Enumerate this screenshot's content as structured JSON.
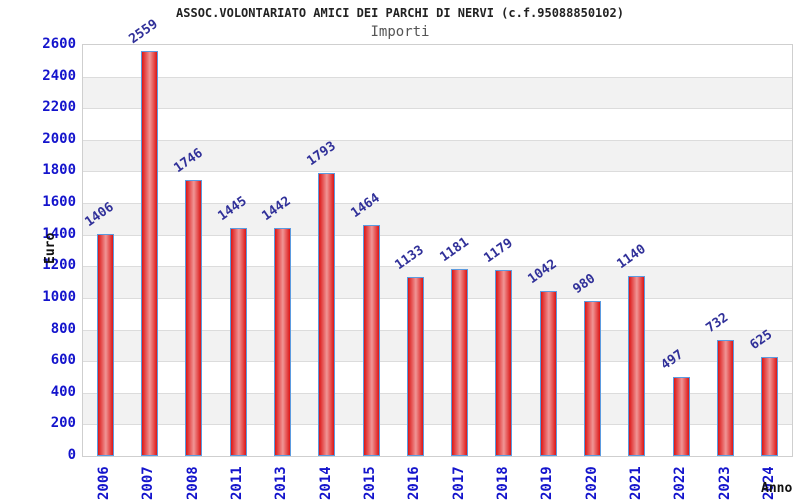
{
  "chart": {
    "title": "ASSOC.VOLONTARIATO AMICI DEI PARCHI DI NERVI (c.f.95088850102)",
    "subtitle": "Importi",
    "y_axis_title": "Euro",
    "x_axis_title": "Anno"
  },
  "chart_data": {
    "type": "bar",
    "title": "ASSOC.VOLONTARIATO AMICI DEI PARCHI DI NERVI (c.f.95088850102)",
    "subtitle": "Importi",
    "xlabel": "Anno",
    "ylabel": "Euro",
    "categories": [
      "2006",
      "2007",
      "2008",
      "2011",
      "2013",
      "2014",
      "2015",
      "2016",
      "2017",
      "2018",
      "2019",
      "2020",
      "2021",
      "2022",
      "2023",
      "2024"
    ],
    "values": [
      1406,
      2559,
      1746,
      1445,
      1442,
      1793,
      1464,
      1133,
      1181,
      1179,
      1042,
      980,
      1140,
      497,
      732,
      625
    ],
    "ylim": [
      0,
      2600
    ],
    "ytick_step": 200,
    "grid": true,
    "alternate_band_fill": true,
    "legend": "none",
    "colors": {
      "bar_edge": "#dc1616",
      "bar_center": "#f09595",
      "bar_border": "#5b9be0",
      "axis_text": "#1414cc",
      "value_label": "#303099",
      "band_gray": "#f2f2f2",
      "grid_line": "#dcdcdc",
      "title": "#222222",
      "subtitle": "#555555"
    }
  }
}
